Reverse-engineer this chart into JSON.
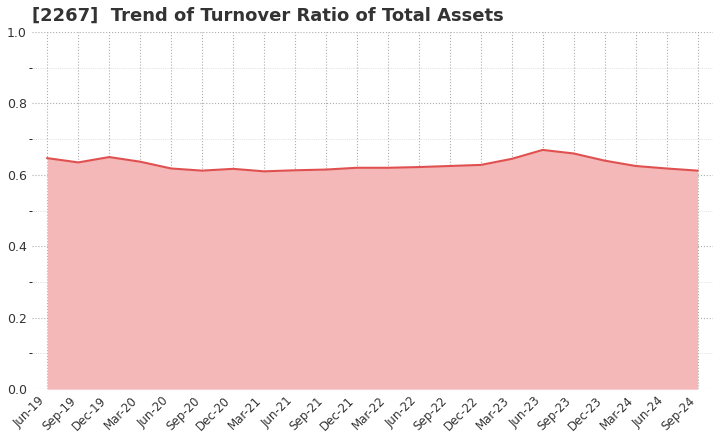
{
  "title": "[2267]  Trend of Turnover Ratio of Total Assets",
  "x_labels": [
    "Jun-19",
    "Sep-19",
    "Dec-19",
    "Mar-20",
    "Jun-20",
    "Sep-20",
    "Dec-20",
    "Mar-21",
    "Jun-21",
    "Sep-21",
    "Dec-21",
    "Mar-22",
    "Jun-22",
    "Sep-22",
    "Dec-22",
    "Mar-23",
    "Jun-23",
    "Sep-23",
    "Dec-23",
    "Mar-24",
    "Jun-24",
    "Sep-24"
  ],
  "values": [
    0.647,
    0.635,
    0.65,
    0.637,
    0.618,
    0.612,
    0.617,
    0.61,
    0.613,
    0.615,
    0.62,
    0.62,
    0.622,
    0.625,
    0.628,
    0.645,
    0.67,
    0.66,
    0.64,
    0.625,
    0.618,
    0.612
  ],
  "line_color": "#e05050",
  "fill_color": "#f5b8b8",
  "ylim": [
    0.0,
    1.0
  ],
  "yticks": [
    0.0,
    0.2,
    0.4,
    0.6,
    0.8,
    1.0
  ],
  "title_fontsize": 13,
  "background_color": "#ffffff",
  "grid_color": "#999999",
  "title_color": "#333333",
  "tick_label_fontsize": 8.5,
  "ylabel_fontsize": 9
}
